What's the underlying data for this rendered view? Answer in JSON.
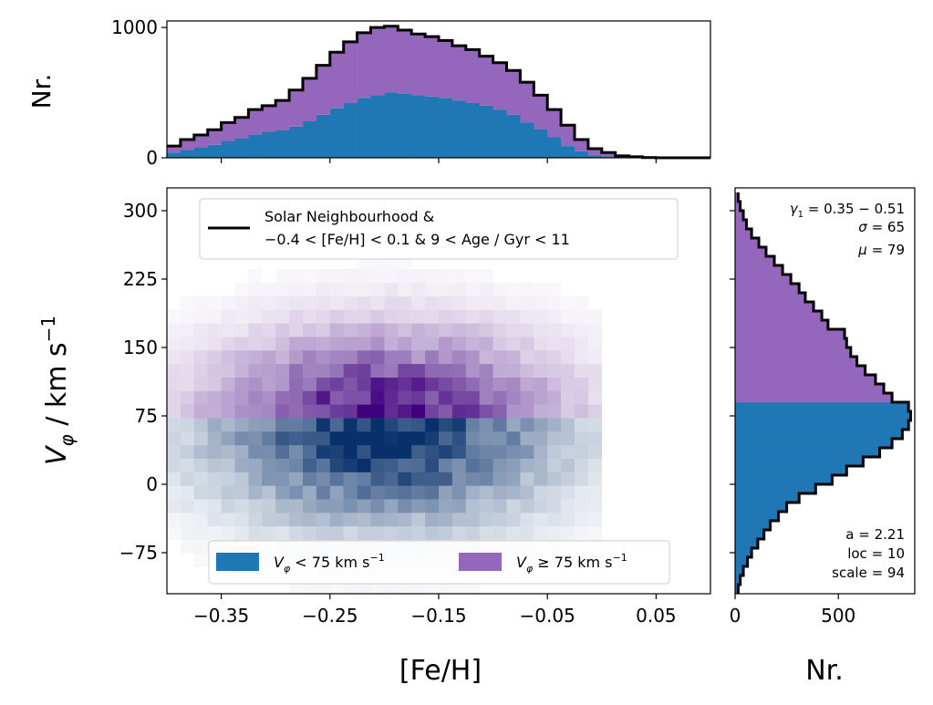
{
  "colors": {
    "blue": "#1f77b4",
    "purple": "#9467bd",
    "outline": "#000000"
  },
  "labels": {
    "top_ylabel": "Nr.",
    "right_xlabel": "Nr.",
    "main_xlabel": "[Fe/H]",
    "main_ylabel_math": "V_φ / km s^-1"
  },
  "legend_top": {
    "line1": "Solar Neighbourhood &",
    "line2": "−0.4 < [Fe/H] < 0.1 & 9 < Age / Gyr < 11"
  },
  "legend_bottom": {
    "low_label": "V_φ < 75 km s^-1",
    "high_label": "V_φ ≥ 75 km s^-1"
  },
  "annotations": {
    "top_right": [
      "γ1 = 0.35 − 0.51",
      "σ = 65",
      "μ = 79"
    ],
    "bottom_right": [
      "a = 2.21",
      "loc = 10",
      "scale = 94"
    ]
  },
  "chart_data": [
    {
      "type": "heatmap",
      "panel": "main",
      "xlim": [
        -0.4,
        0.1
      ],
      "ylim": [
        -120,
        325
      ],
      "xticks": [
        -0.35,
        -0.25,
        -0.15,
        -0.05,
        0.05
      ],
      "xtick_labels": [
        "−0.35",
        "−0.25",
        "−0.15",
        "−0.05",
        "0.05"
      ],
      "yticks": [
        -75,
        0,
        75,
        150,
        225,
        300
      ],
      "ytick_labels": [
        "−75",
        "0",
        "75",
        "150",
        "225",
        "300"
      ],
      "split_value": 75,
      "grid": false,
      "legend_placement": [
        "top-center",
        "bottom-center"
      ]
    },
    {
      "type": "bar",
      "panel": "top-histogram",
      "xlim": [
        -0.4,
        0.1
      ],
      "ylim": [
        0,
        1050
      ],
      "yticks": [
        0,
        1000
      ],
      "ytick_labels": [
        "0",
        "1000"
      ],
      "bin_width": 0.0125,
      "bin_start": -0.4,
      "series": [
        {
          "name": "V_φ < 75 km s^-1",
          "values": [
            40,
            60,
            80,
            100,
            130,
            150,
            180,
            200,
            210,
            240,
            280,
            330,
            380,
            420,
            460,
            480,
            500,
            490,
            480,
            470,
            460,
            440,
            420,
            400,
            370,
            330,
            270,
            220,
            160,
            90,
            50,
            20,
            10,
            5,
            3,
            0,
            0,
            0,
            0,
            0
          ]
        },
        {
          "name": "V_φ ≥ 75 km s^-1",
          "values": [
            50,
            80,
            95,
            115,
            140,
            160,
            190,
            200,
            230,
            280,
            330,
            380,
            430,
            470,
            500,
            520,
            510,
            490,
            470,
            460,
            440,
            420,
            410,
            380,
            360,
            340,
            310,
            260,
            210,
            160,
            90,
            50,
            30,
            10,
            5,
            2,
            0,
            0,
            0,
            0
          ]
        }
      ]
    },
    {
      "type": "bar",
      "panel": "right-histogram",
      "orientation": "horizontal",
      "ylim": [
        -120,
        325
      ],
      "xlim": [
        0,
        870
      ],
      "xticks": [
        0,
        500
      ],
      "xtick_labels": [
        "0",
        "500"
      ],
      "bin_start": -120,
      "bin_width": 10,
      "series": [
        {
          "name": "V_φ < 75 km s^-1",
          "values": [
            15,
            25,
            40,
            60,
            80,
            110,
            140,
            170,
            210,
            250,
            310,
            390,
            470,
            540,
            620,
            700,
            760,
            810,
            840,
            850,
            840
          ]
        },
        {
          "name": "V_φ ≥ 75 km s^-1",
          "values": [
            760,
            720,
            680,
            630,
            590,
            560,
            540,
            530,
            450,
            420,
            380,
            340,
            310,
            270,
            230,
            190,
            150,
            115,
            80,
            55,
            40,
            25,
            15
          ]
        }
      ]
    }
  ]
}
